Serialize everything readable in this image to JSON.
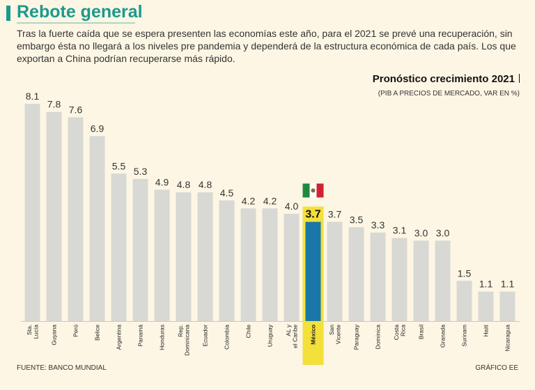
{
  "header": {
    "title": "Rebote general",
    "subtitle": "Tras la fuerte caída que se espera presenten las economías este año, para el 2021 se prevé una recuperación, sin embargo ésta no llegará a los niveles pre pandemia y dependerá de la estructura económica de cada país. Los que exportan a China podrían recuperarse más rápido."
  },
  "footer": {
    "source": "FUENTE: BANCO MUNDIAL",
    "credit": "GRÁFICO EE"
  },
  "colors": {
    "accent": "#1a9a8e",
    "bar": "#d8d8d4",
    "highlight_bar": "#1877a8",
    "highlight_bg": "#f3e03a"
  },
  "chart_data": {
    "type": "bar",
    "title": "Pronóstico crecimiento 2021",
    "subtitle": "(PIB A PRECIOS DE MERCADO, VAR EN %)",
    "ylim": [
      0,
      8.5
    ],
    "highlight": "México",
    "highlight_icon": "mexico-flag-icon",
    "categories": [
      "Sta. Lucía",
      "Guyana",
      "Perú",
      "Belice",
      "Argentina",
      "Panamá",
      "Honduras",
      "Rep. Dominicana",
      "Ecuador",
      "Colombia",
      "Chile",
      "Uruguay",
      "AL y el Caribe",
      "México",
      "San Vicente",
      "Paraguay",
      "Dominica",
      "Costa Rica",
      "Brasil",
      "Granada",
      "Surinam",
      "Haití",
      "Nicaragua"
    ],
    "labels": [
      "8.1",
      "7.8",
      "7.6",
      "6.9",
      "5.5",
      "5.3",
      "4.9",
      "4.8",
      "4.8",
      "4.5",
      "4.2",
      "4.2",
      "4.0",
      "3.7",
      "3.7",
      "3.5",
      "3.3",
      "3.1",
      "3.0",
      "3.0",
      "1.5",
      "1.1",
      "1.1"
    ],
    "values": [
      8.1,
      7.8,
      7.6,
      6.9,
      5.5,
      5.3,
      4.9,
      4.8,
      4.8,
      4.5,
      4.2,
      4.2,
      4.0,
      3.7,
      3.7,
      3.5,
      3.3,
      3.1,
      3.0,
      3.0,
      1.5,
      1.1,
      1.1
    ]
  }
}
